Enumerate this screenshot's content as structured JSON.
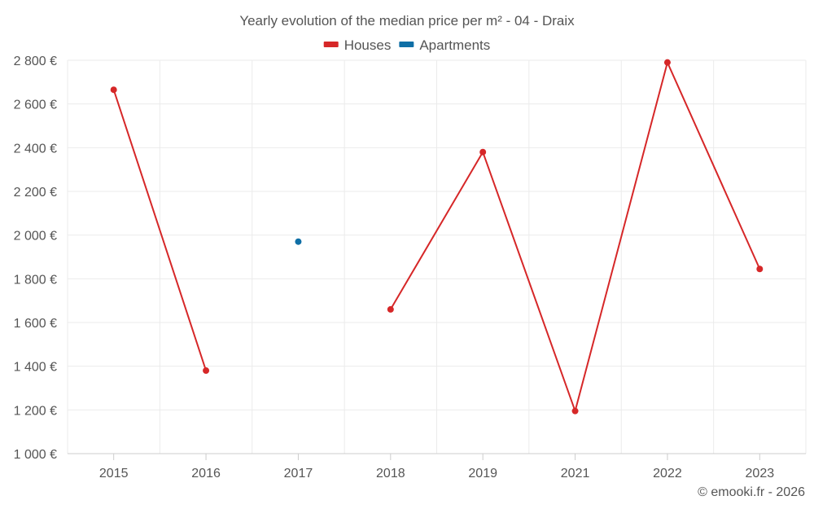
{
  "title": "Yearly evolution of the median price per m² - 04 - Draix",
  "credit": "© emooki.fr - 2026",
  "chart_data": {
    "type": "line",
    "title": "Yearly evolution of the median price per m² - 04 - Draix",
    "xlabel": "",
    "ylabel": "",
    "categories": [
      "2015",
      "2016",
      "2017",
      "2018",
      "2019",
      "2021",
      "2022",
      "2023"
    ],
    "ylim": [
      1000,
      2800
    ],
    "yticks": [
      1000,
      1200,
      1400,
      1600,
      1800,
      2000,
      2200,
      2400,
      2600,
      2800
    ],
    "y_tick_labels": [
      "1 000 €",
      "1 200 €",
      "1 400 €",
      "1 600 €",
      "1 800 €",
      "2 000 €",
      "2 200 €",
      "2 400 €",
      "2 600 €",
      "2 800 €"
    ],
    "grid": true,
    "legend_position": "top-center",
    "series": [
      {
        "name": "Houses",
        "color": "#d62728",
        "values": [
          2665,
          1380,
          null,
          1660,
          2380,
          1195,
          2790,
          1845
        ]
      },
      {
        "name": "Apartments",
        "color": "#0f6fa6",
        "values": [
          null,
          null,
          1970,
          null,
          null,
          null,
          null,
          null
        ]
      }
    ]
  }
}
